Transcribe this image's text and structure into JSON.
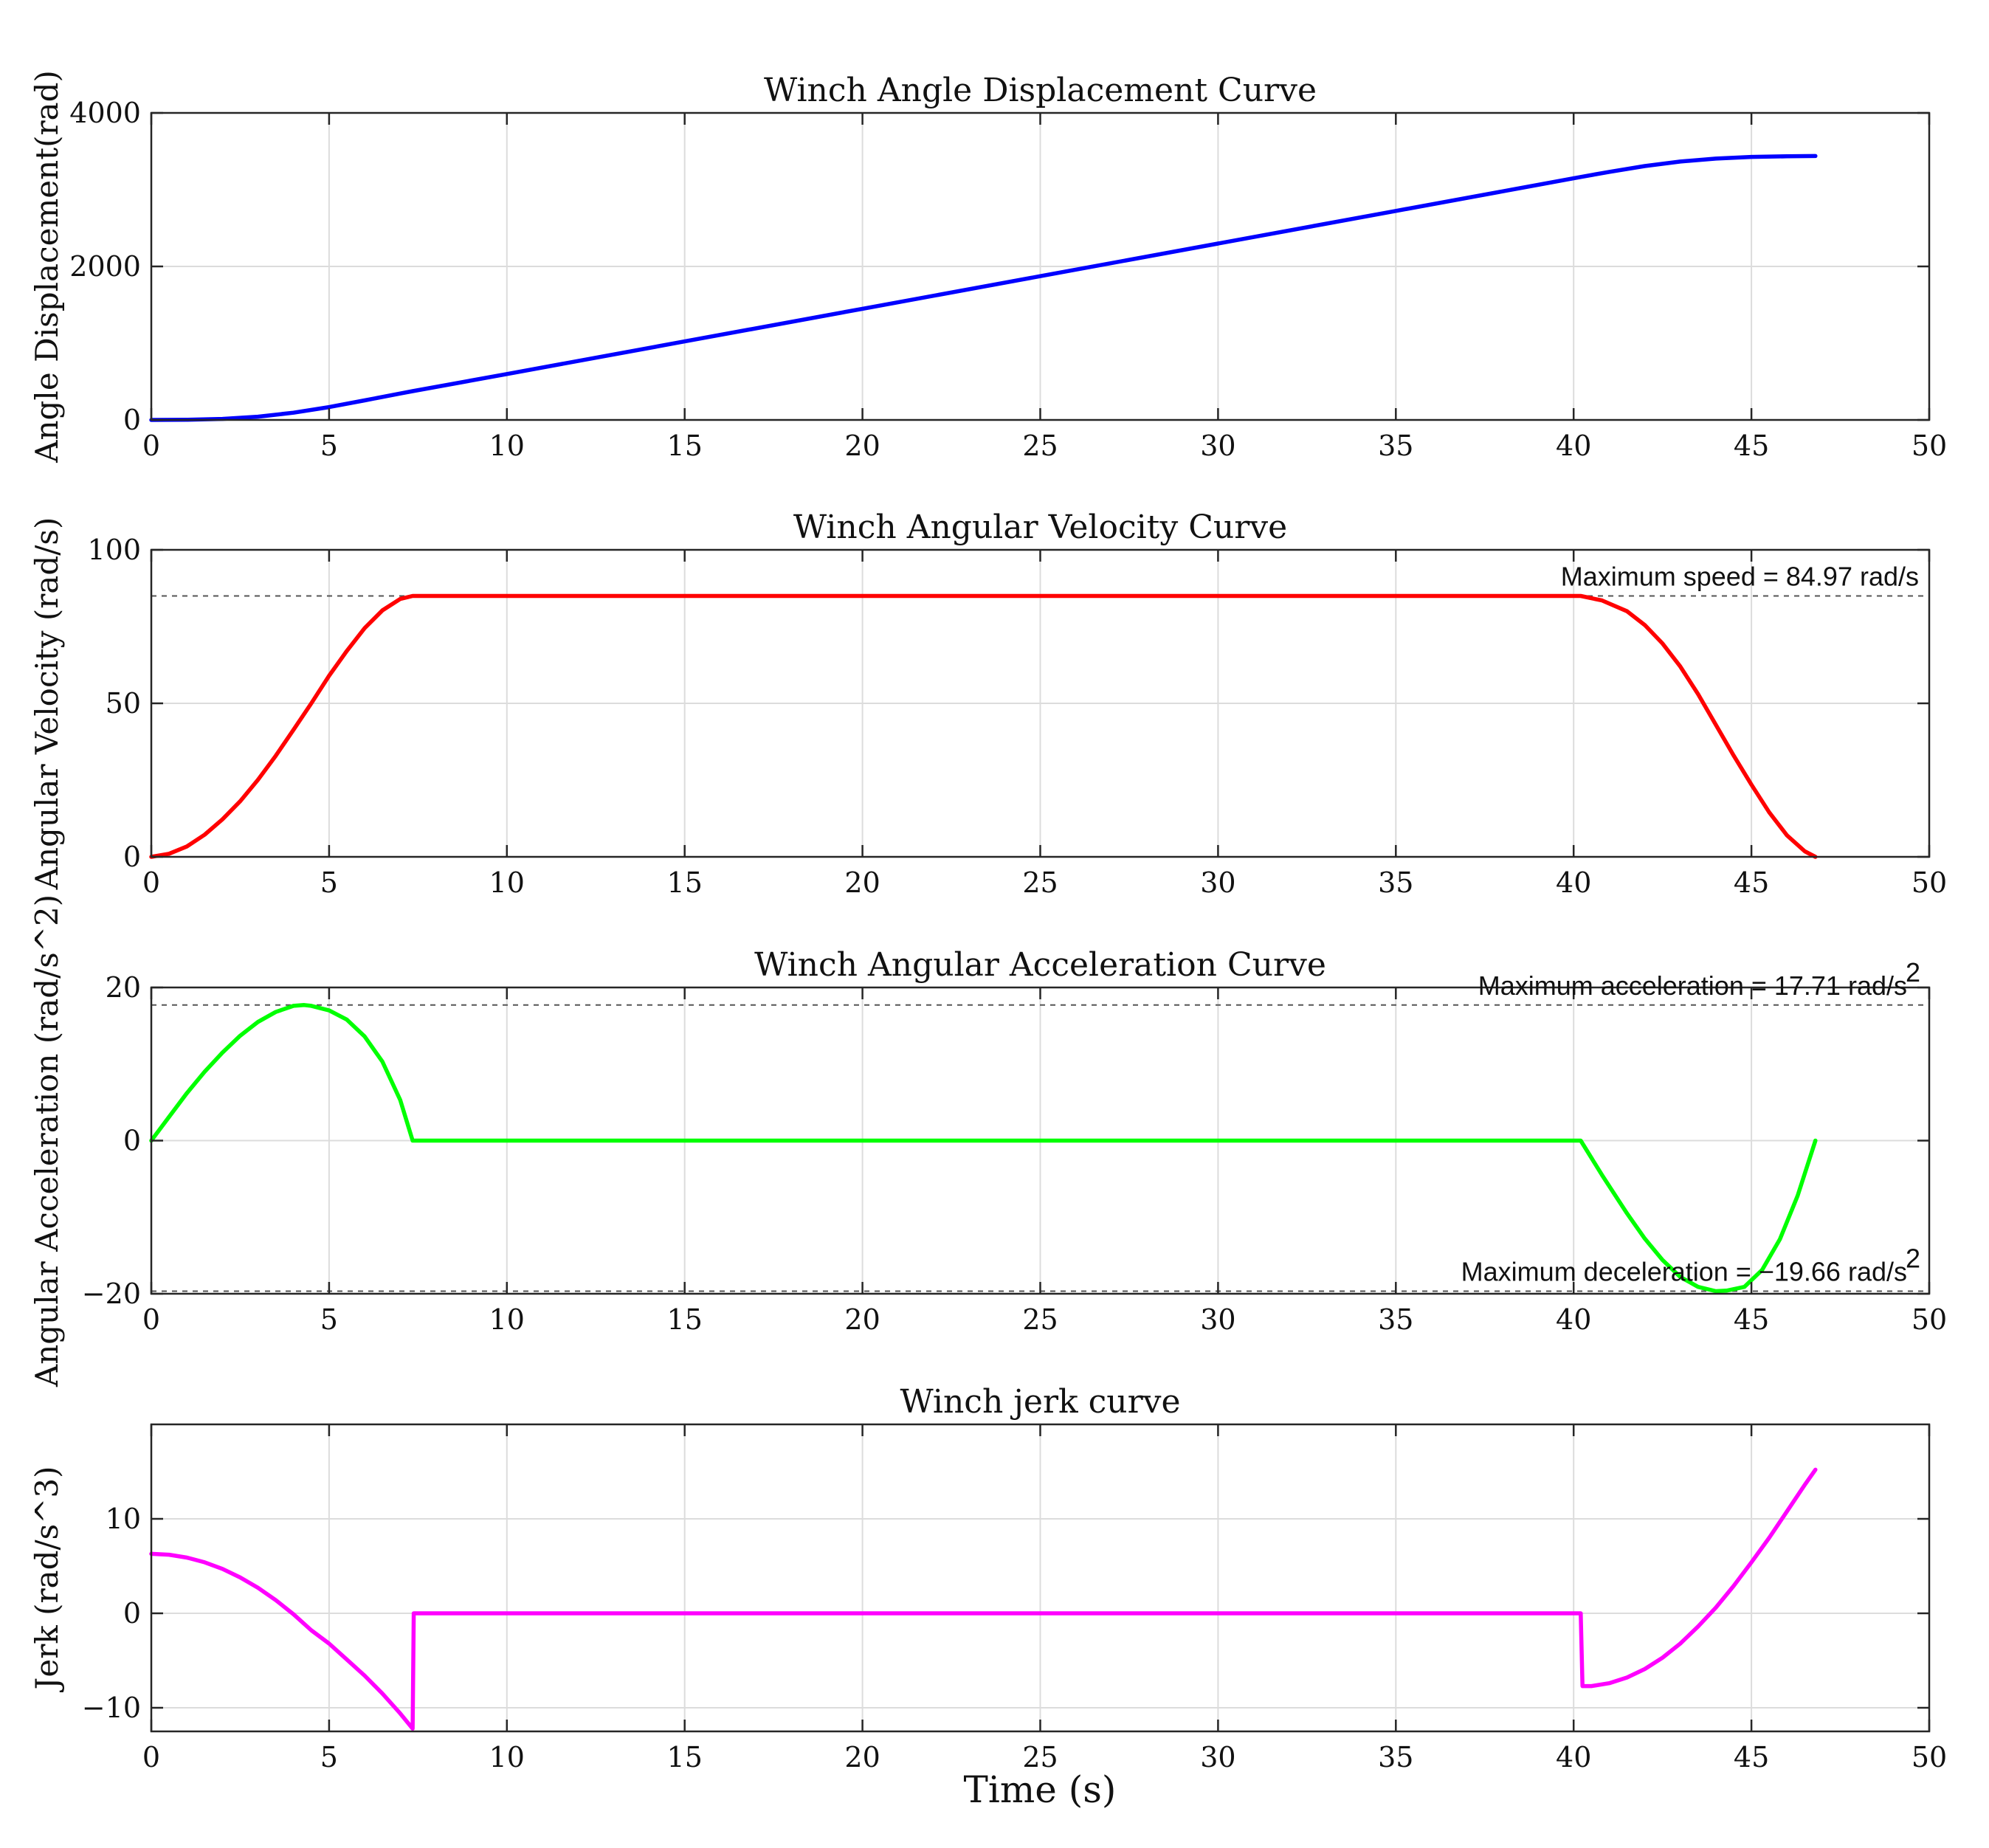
{
  "figure": {
    "xlabel": "Time (s)"
  },
  "chart_data": [
    {
      "type": "line",
      "title": "Winch Angle Displacement Curve",
      "xlabel": "",
      "ylabel": "Angle Displacement(rad)",
      "xlim": [
        0,
        50
      ],
      "ylim": [
        0,
        4000
      ],
      "xticks": [
        "0",
        "5",
        "10",
        "15",
        "20",
        "25",
        "30",
        "35",
        "40",
        "45",
        "50"
      ],
      "yticks": [
        "0",
        "2000",
        "4000"
      ],
      "grid": true,
      "series": [
        {
          "color": "#0000ff",
          "x": [
            0,
            1,
            2,
            3,
            4,
            5,
            6,
            7,
            7.35,
            10,
            15,
            20,
            25,
            30,
            35,
            40,
            40.2,
            41,
            42,
            43,
            44,
            45,
            46,
            46.8
          ],
          "y": [
            0,
            1.7,
            13,
            42,
            94,
            167,
            255,
            344,
            375,
            598,
            1023,
            1448,
            1873,
            2298,
            2723,
            3148,
            3165,
            3232,
            3308,
            3366,
            3405,
            3427,
            3435,
            3438
          ]
        }
      ],
      "annotations": []
    },
    {
      "type": "line",
      "title": "Winch Angular Velocity Curve",
      "xlabel": "",
      "ylabel": "Angular Velocity (rad/s)",
      "xlim": [
        0,
        50
      ],
      "ylim": [
        0,
        100
      ],
      "xticks": [
        "0",
        "5",
        "10",
        "15",
        "20",
        "25",
        "30",
        "35",
        "40",
        "45",
        "50"
      ],
      "yticks": [
        "0",
        "50",
        "100"
      ],
      "grid": true,
      "series": [
        {
          "color": "#ff0000",
          "x": [
            0,
            0.5,
            1,
            1.5,
            2,
            2.5,
            3,
            3.5,
            4,
            4.5,
            5,
            5.5,
            6,
            6.5,
            7,
            7.35,
            10,
            15,
            20,
            25,
            30,
            35,
            40,
            40.2,
            40.8,
            41.5,
            42,
            42.5,
            43,
            43.5,
            44,
            44.5,
            45,
            45.5,
            46,
            46.5,
            46.8
          ],
          "y": [
            0,
            1,
            3.4,
            7.2,
            12.2,
            18.1,
            25.1,
            32.9,
            41.4,
            50,
            59,
            67.1,
            74.5,
            80.3,
            84,
            84.97,
            84.97,
            84.97,
            84.97,
            84.97,
            84.97,
            84.97,
            84.97,
            84.97,
            83.5,
            80,
            75.5,
            69.5,
            62,
            53,
            43,
            33,
            23.5,
            14.5,
            7,
            1.8,
            0
          ]
        }
      ],
      "annotations": [
        {
          "text": "Maximum speed = 84.97 rad/s",
          "y": 84.97
        }
      ]
    },
    {
      "type": "line",
      "title": "Winch Angular Acceleration Curve",
      "xlabel": "",
      "ylabel": "Angular Acceleration (rad/s^2)",
      "xlim": [
        0,
        50
      ],
      "ylim": [
        -20,
        20
      ],
      "xticks": [
        "0",
        "5",
        "10",
        "15",
        "20",
        "25",
        "30",
        "35",
        "40",
        "45",
        "50"
      ],
      "yticks": [
        "-20",
        "0",
        "20"
      ],
      "grid": true,
      "series": [
        {
          "color": "#00ff00",
          "x": [
            0,
            0.5,
            1,
            1.5,
            2,
            2.5,
            3,
            3.5,
            4,
            4.3,
            4.5,
            5,
            5.5,
            6,
            6.5,
            7,
            7.35,
            10,
            15,
            20,
            25,
            30,
            35,
            40,
            40.2,
            40.8,
            41.5,
            42,
            42.5,
            43,
            43.5,
            44,
            44.3,
            44.8,
            45.3,
            45.8,
            46.3,
            46.8
          ],
          "y": [
            0,
            3.1,
            6.2,
            9,
            11.5,
            13.7,
            15.5,
            16.8,
            17.6,
            17.71,
            17.6,
            17,
            15.8,
            13.6,
            10.3,
            5.3,
            0,
            0,
            0,
            0,
            0,
            0,
            0,
            0,
            0,
            -4.5,
            -9.5,
            -12.8,
            -15.6,
            -17.8,
            -19.1,
            -19.66,
            -19.6,
            -19.1,
            -16.9,
            -12.9,
            -7.2,
            0
          ]
        }
      ],
      "annotations": [
        {
          "text": "Maximum acceleration = 17.71 rad/s",
          "sup": "2",
          "y": 17.71
        },
        {
          "text": "Maximum deceleration = −19.66 rad/s",
          "sup": "2",
          "y": -19.66
        }
      ]
    },
    {
      "type": "line",
      "title": "Winch jerk curve",
      "xlabel": "Time (s)",
      "ylabel": "Jerk (rad/s^3)",
      "xlim": [
        0,
        50
      ],
      "ylim": [
        -12.5,
        20
      ],
      "xticks": [
        "0",
        "5",
        "10",
        "15",
        "20",
        "25",
        "30",
        "35",
        "40",
        "45",
        "50"
      ],
      "yticks": [
        "-10",
        "0",
        "10"
      ],
      "grid": true,
      "series": [
        {
          "color": "#ff00ff",
          "x": [
            0,
            0.5,
            1,
            1.5,
            2,
            2.5,
            3,
            3.5,
            4,
            4.5,
            5,
            5.5,
            6,
            6.5,
            7,
            7.35,
            7.38,
            10,
            15,
            20,
            25,
            30,
            35,
            40,
            40.2,
            40.25,
            40.5,
            41,
            41.5,
            42,
            42.5,
            43,
            43.5,
            44,
            44.5,
            45,
            45.5,
            46,
            46.5,
            46.8
          ],
          "y": [
            6.3,
            6.2,
            5.9,
            5.4,
            4.7,
            3.8,
            2.7,
            1.4,
            -0.1,
            -1.8,
            -3.2,
            -4.9,
            -6.6,
            -8.5,
            -10.6,
            -12.2,
            0,
            0,
            0,
            0,
            0,
            0,
            0,
            0,
            0,
            -7.7,
            -7.7,
            -7.4,
            -6.8,
            -5.9,
            -4.7,
            -3.2,
            -1.4,
            0.6,
            2.9,
            5.4,
            8,
            10.8,
            13.6,
            15.2
          ]
        }
      ],
      "annotations": []
    }
  ]
}
